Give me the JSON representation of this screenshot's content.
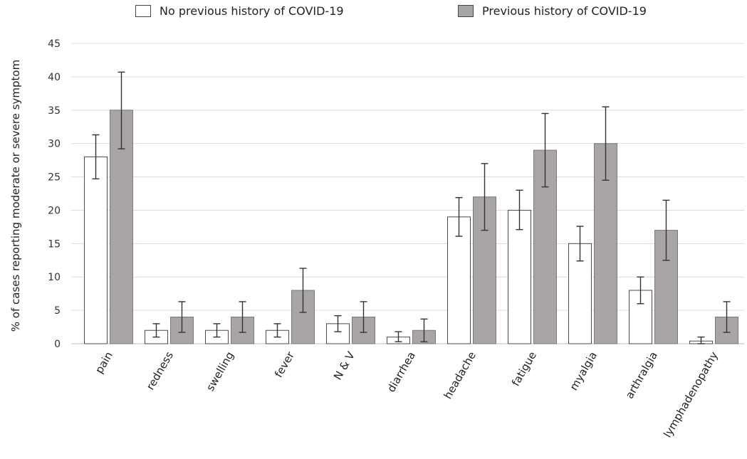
{
  "chart_data": {
    "type": "bar",
    "title": "",
    "xlabel": "",
    "ylabel": "% of cases reporting moderate or severe symptom",
    "ylim": [
      0,
      45
    ],
    "yticks": [
      0,
      5,
      10,
      15,
      20,
      25,
      30,
      35,
      40,
      45
    ],
    "grid": true,
    "legend_position": "top",
    "categories": [
      "pain",
      "redness",
      "swelling",
      "fever",
      "N & V",
      "diarrhea",
      "headache",
      "fatigue",
      "myalgia",
      "arthralgia",
      "lymphadenopathy"
    ],
    "series": [
      {
        "name": "No previous history of COVID-19",
        "color": "#ffffff",
        "values": [
          28,
          2,
          2,
          2,
          3,
          1,
          19,
          20,
          15,
          8,
          0.4
        ],
        "error_low": [
          24.7,
          1.0,
          1.0,
          1.0,
          1.8,
          0.3,
          16.1,
          17.1,
          12.4,
          6.0,
          0.0
        ],
        "error_high": [
          31.3,
          3.0,
          3.0,
          3.0,
          4.2,
          1.8,
          21.9,
          23.0,
          17.6,
          10.0,
          1.0
        ]
      },
      {
        "name": "Previous history of COVID-19",
        "color": "#a9a5a5",
        "values": [
          35,
          4,
          4,
          8,
          4,
          2,
          22,
          29,
          30,
          17,
          4
        ],
        "error_low": [
          29.2,
          1.7,
          1.7,
          4.7,
          1.7,
          0.3,
          17.0,
          23.5,
          24.5,
          12.5,
          1.7
        ],
        "error_high": [
          40.7,
          6.3,
          6.3,
          11.3,
          6.3,
          3.7,
          27.0,
          34.5,
          35.5,
          21.5,
          6.3
        ]
      }
    ]
  }
}
